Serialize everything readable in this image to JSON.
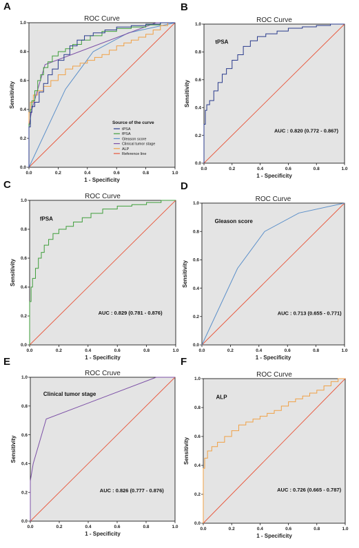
{
  "figure": {
    "panels": [
      {
        "letter": "A",
        "title": "ROC Curve",
        "xlabel": "1 - Specificity",
        "ylabel": "Sensitivity",
        "label": "",
        "auc": "",
        "legend": {
          "title": "Source of the curve",
          "items": [
            "tPSA",
            "fPSA",
            "Gleason score",
            "Clinical tumor stage",
            "ALP",
            "Reference line"
          ]
        }
      },
      {
        "letter": "B",
        "title": "ROC Curve",
        "xlabel": "1 - Specificity",
        "ylabel": "Sensitivity",
        "label": "tPSA",
        "auc": "AUC : 0.820 (0.772 - 0.867)"
      },
      {
        "letter": "C",
        "title": "ROC Curve",
        "xlabel": "1 - Specificity",
        "ylabel": "Sensitivity",
        "label": "fPSA",
        "auc": "AUC : 0.829 (0.781 - 0.876)"
      },
      {
        "letter": "D",
        "title": "ROC Curve",
        "xlabel": "1 - Specificity",
        "ylabel": "Sensitivity",
        "label": "Gleason score",
        "auc": "AUC : 0.713 (0.655 - 0.771)"
      },
      {
        "letter": "E",
        "title": "ROC Cruve",
        "xlabel": "1 - Specificity",
        "ylabel": "Sensitivity",
        "label": "Clinical tumor stage",
        "auc": "AUC : 0.826 (0.777 - 0.876)"
      },
      {
        "letter": "F",
        "title": "ROC Curve",
        "xlabel": "1 - Specificity",
        "ylabel": "Sensitivity",
        "label": "ALP",
        "auc": "AUC : 0.726 (0.665 - 0.787)"
      }
    ]
  },
  "chart_data": {
    "type": "line",
    "xlim": [
      0,
      1
    ],
    "ylim": [
      0,
      1
    ],
    "ticks": [
      "0.0",
      "0.2",
      "0.4",
      "0.6",
      "0.8",
      "1.0"
    ],
    "colors": {
      "tpsa": "#283a8c",
      "fpsa": "#3e9e3a",
      "gleason": "#5b8fc9",
      "stage": "#7b4fa6",
      "alp": "#f0a044",
      "reference": "#e8553a",
      "plot_background": "#e4e4e4"
    },
    "series": {
      "tpsa": [
        [
          0,
          0
        ],
        [
          0,
          0.16
        ],
        [
          0.01,
          0.28
        ],
        [
          0.02,
          0.38
        ],
        [
          0.04,
          0.42
        ],
        [
          0.07,
          0.45
        ],
        [
          0.1,
          0.52
        ],
        [
          0.13,
          0.58
        ],
        [
          0.16,
          0.64
        ],
        [
          0.2,
          0.68
        ],
        [
          0.24,
          0.74
        ],
        [
          0.28,
          0.78
        ],
        [
          0.33,
          0.84
        ],
        [
          0.38,
          0.88
        ],
        [
          0.44,
          0.91
        ],
        [
          0.52,
          0.93
        ],
        [
          0.6,
          0.95
        ],
        [
          0.7,
          0.97
        ],
        [
          0.8,
          0.98
        ],
        [
          0.9,
          0.99
        ],
        [
          1,
          1
        ]
      ],
      "fpsa": [
        [
          0,
          0
        ],
        [
          0,
          0.1
        ],
        [
          0.01,
          0.3
        ],
        [
          0.02,
          0.4
        ],
        [
          0.04,
          0.46
        ],
        [
          0.06,
          0.53
        ],
        [
          0.08,
          0.6
        ],
        [
          0.1,
          0.64
        ],
        [
          0.13,
          0.69
        ],
        [
          0.16,
          0.73
        ],
        [
          0.2,
          0.77
        ],
        [
          0.25,
          0.8
        ],
        [
          0.3,
          0.82
        ],
        [
          0.36,
          0.85
        ],
        [
          0.42,
          0.88
        ],
        [
          0.5,
          0.91
        ],
        [
          0.6,
          0.94
        ],
        [
          0.7,
          0.96
        ],
        [
          0.8,
          0.97
        ],
        [
          0.9,
          0.985
        ],
        [
          1,
          1
        ]
      ],
      "gleason": [
        [
          0,
          0
        ],
        [
          0.25,
          0.54
        ],
        [
          0.44,
          0.8
        ],
        [
          0.68,
          0.93
        ],
        [
          1,
          1
        ]
      ],
      "stage": [
        [
          0,
          0
        ],
        [
          0,
          0.28
        ],
        [
          0.02,
          0.4
        ],
        [
          0.11,
          0.71
        ],
        [
          0.87,
          1
        ],
        [
          1,
          1
        ]
      ],
      "alp": [
        [
          0,
          0
        ],
        [
          0,
          0.25
        ],
        [
          0.01,
          0.38
        ],
        [
          0.03,
          0.45
        ],
        [
          0.06,
          0.5
        ],
        [
          0.1,
          0.53
        ],
        [
          0.15,
          0.56
        ],
        [
          0.2,
          0.6
        ],
        [
          0.25,
          0.64
        ],
        [
          0.3,
          0.68
        ],
        [
          0.35,
          0.7
        ],
        [
          0.4,
          0.72
        ],
        [
          0.45,
          0.74
        ],
        [
          0.5,
          0.76
        ],
        [
          0.55,
          0.78
        ],
        [
          0.6,
          0.81
        ],
        [
          0.65,
          0.84
        ],
        [
          0.7,
          0.86
        ],
        [
          0.75,
          0.88
        ],
        [
          0.8,
          0.9
        ],
        [
          0.85,
          0.92
        ],
        [
          0.9,
          0.95
        ],
        [
          0.95,
          0.98
        ],
        [
          1,
          1
        ]
      ],
      "reference": [
        [
          0,
          0
        ],
        [
          1,
          1
        ]
      ]
    },
    "panel_series": {
      "A": [
        "gleason",
        "alp",
        "stage",
        "fpsa",
        "tpsa"
      ],
      "B": [
        "tpsa"
      ],
      "C": [
        "fpsa"
      ],
      "D": [
        "gleason"
      ],
      "E": [
        "stage"
      ],
      "F": [
        "alp"
      ]
    },
    "legend_keys": [
      "tpsa",
      "fpsa",
      "gleason",
      "stage",
      "alp",
      "reference"
    ]
  }
}
